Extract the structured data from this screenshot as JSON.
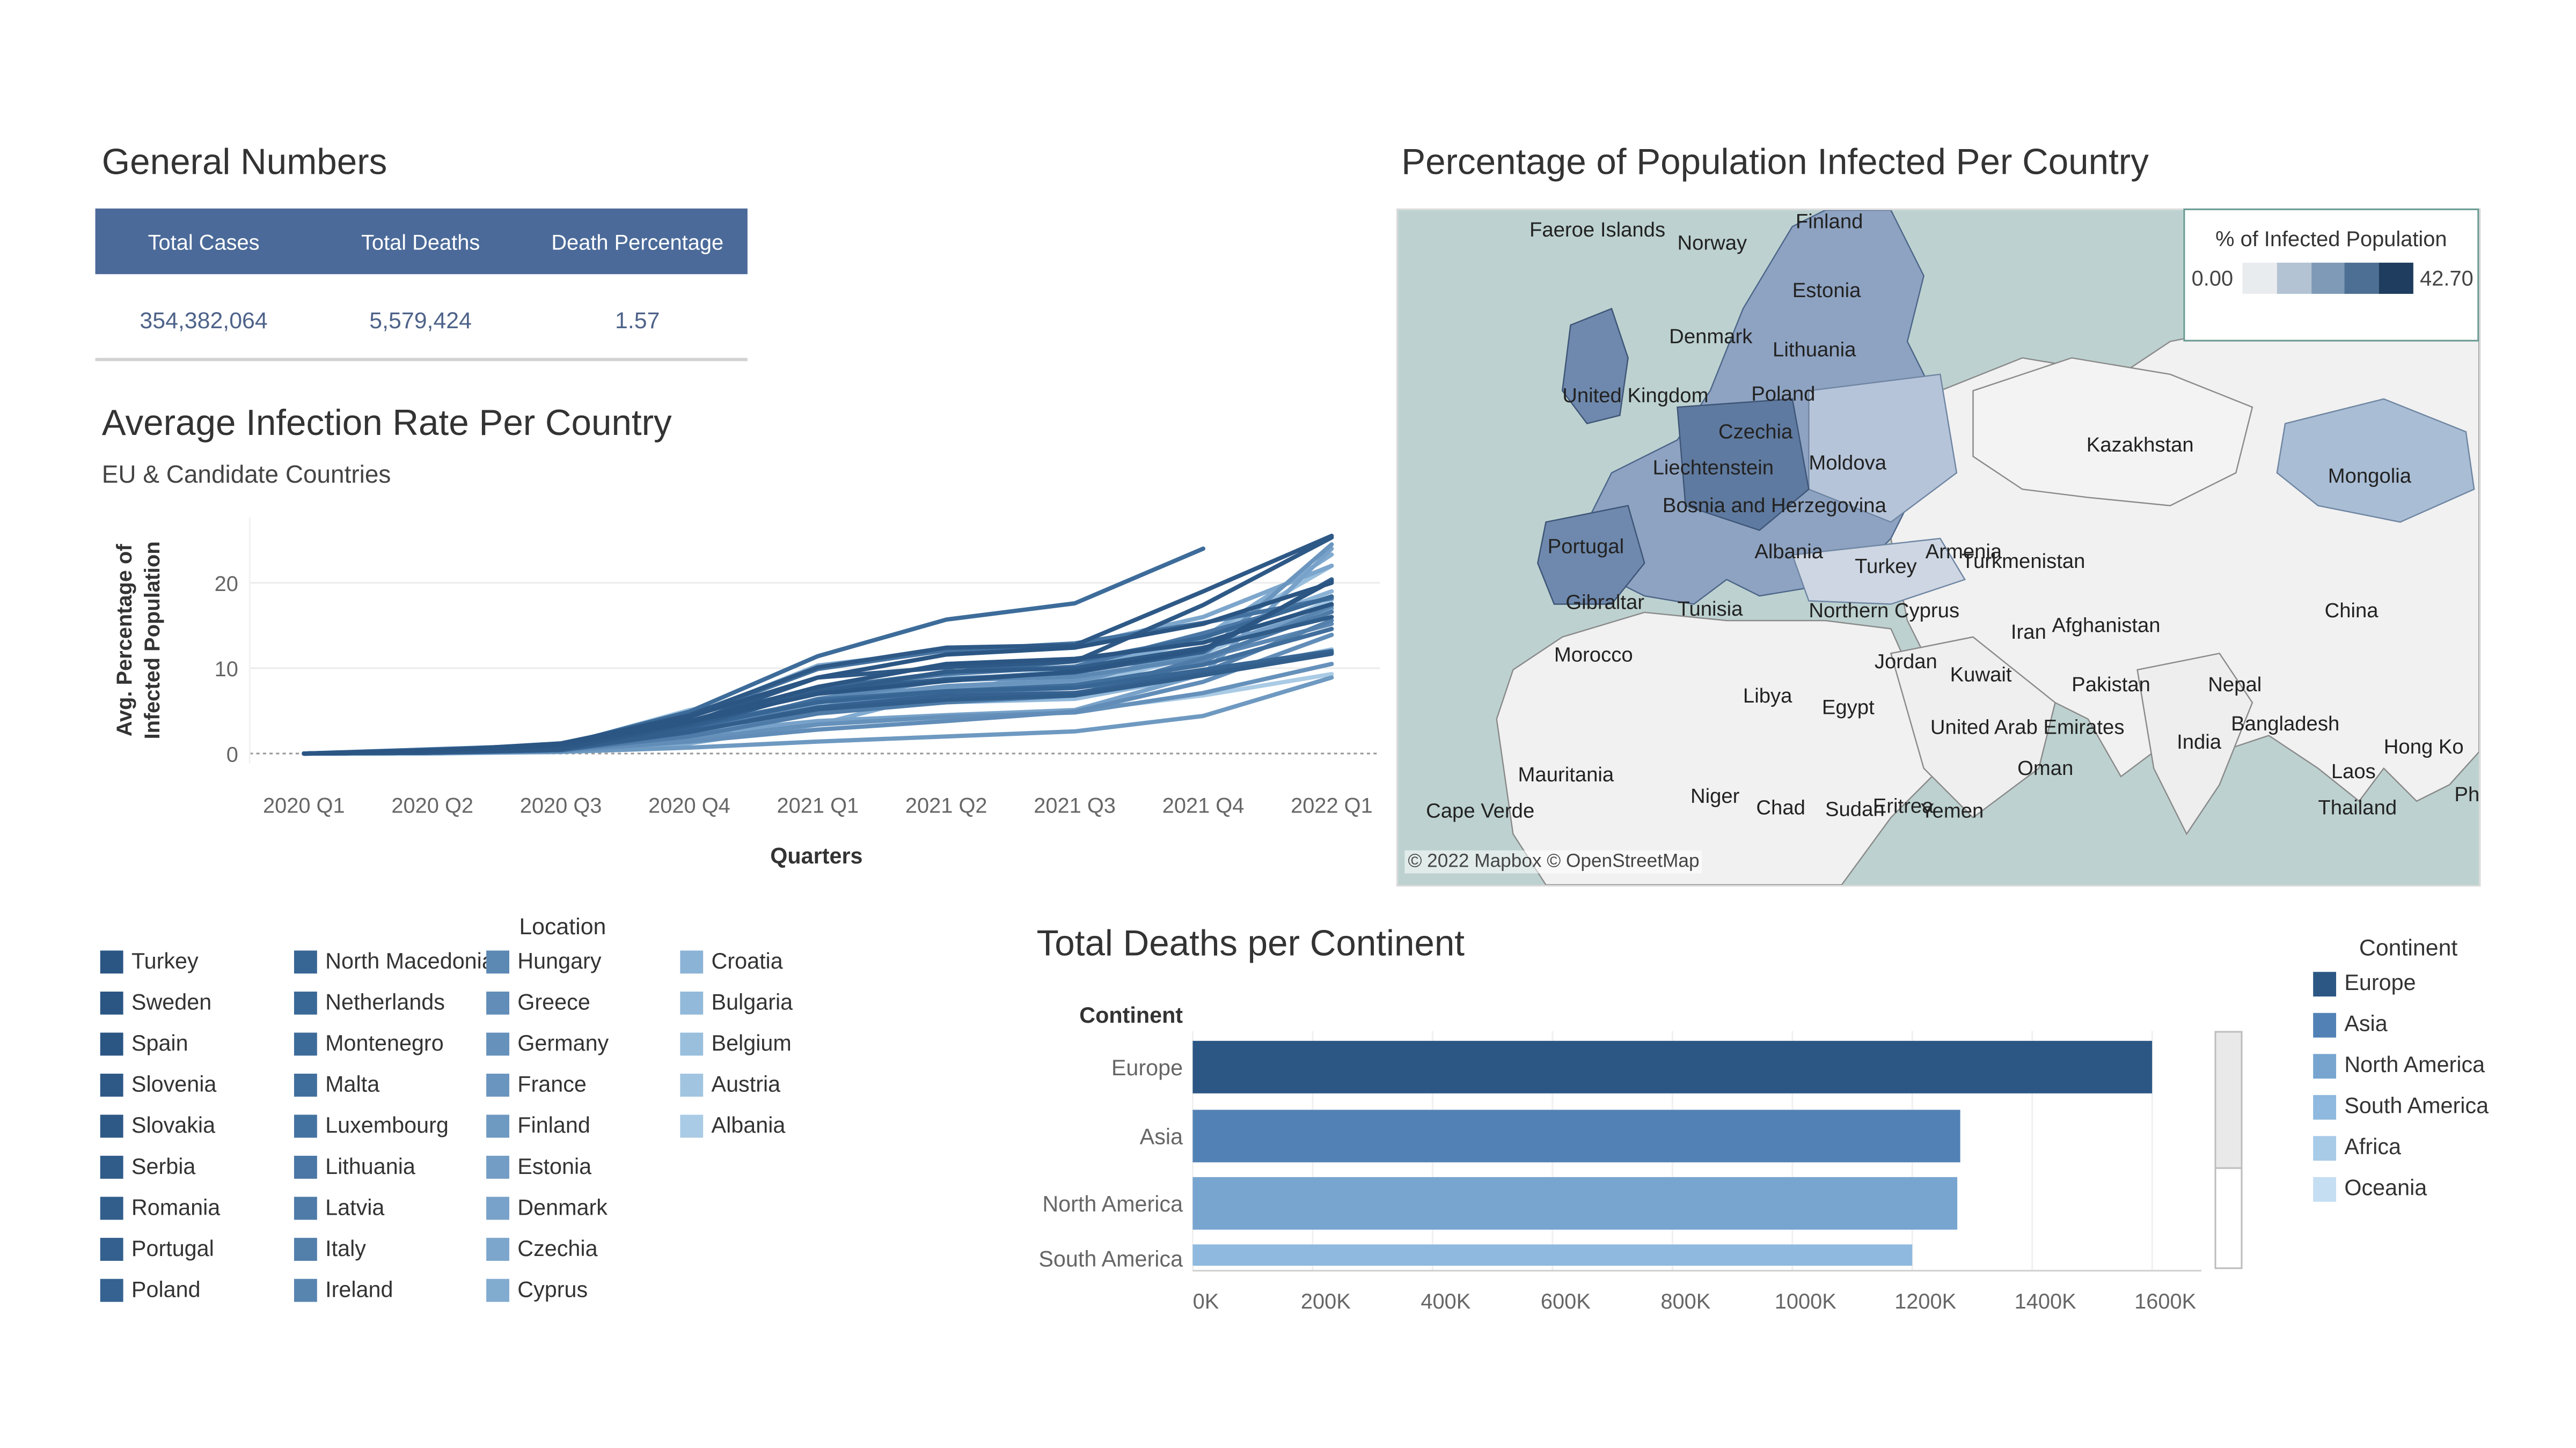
{
  "general": {
    "title": "General Numbers",
    "headers": [
      "Total Cases",
      "Total Deaths",
      "Death Percentage"
    ],
    "values": [
      "354,382,064",
      "5,579,424",
      "1.57"
    ]
  },
  "line_chart": {
    "title": "Average Infection Rate Per Country",
    "subtitle": "EU & Candidate Countries"
  },
  "location_legend": {
    "title": "Location",
    "items": [
      {
        "label": "Turkey",
        "color": "#2b5684"
      },
      {
        "label": "Sweden",
        "color": "#2b5684"
      },
      {
        "label": "Spain",
        "color": "#2b5684"
      },
      {
        "label": "Slovenia",
        "color": "#2e5987"
      },
      {
        "label": "Slovakia",
        "color": "#2e5987"
      },
      {
        "label": "Serbia",
        "color": "#305c8a"
      },
      {
        "label": "Romania",
        "color": "#325e8c"
      },
      {
        "label": "Portugal",
        "color": "#33608e"
      },
      {
        "label": "Poland",
        "color": "#356291"
      },
      {
        "label": "North Macedonia",
        "color": "#386694"
      },
      {
        "label": "Netherlands",
        "color": "#3a6997"
      },
      {
        "label": "Montenegro",
        "color": "#3d6c9a"
      },
      {
        "label": "Malta",
        "color": "#416f9d"
      },
      {
        "label": "Luxembourg",
        "color": "#4573a1"
      },
      {
        "label": "Lithuania",
        "color": "#4a77a5"
      },
      {
        "label": "Latvia",
        "color": "#4e7ba8"
      },
      {
        "label": "Italy",
        "color": "#537fab"
      },
      {
        "label": "Ireland",
        "color": "#5884b0"
      },
      {
        "label": "Hungary",
        "color": "#5c88b4"
      },
      {
        "label": "Greece",
        "color": "#618db8"
      },
      {
        "label": "Germany",
        "color": "#6591bb"
      },
      {
        "label": "France",
        "color": "#6a95be"
      },
      {
        "label": "Finland",
        "color": "#6e99c1"
      },
      {
        "label": "Estonia",
        "color": "#739dc5"
      },
      {
        "label": "Denmark",
        "color": "#78a2c9"
      },
      {
        "label": "Czechia",
        "color": "#7da6cc"
      },
      {
        "label": "Cyprus",
        "color": "#82abd0"
      },
      {
        "label": "Croatia",
        "color": "#8bb3d6"
      },
      {
        "label": "Bulgaria",
        "color": "#92b9da"
      },
      {
        "label": "Belgium",
        "color": "#99bfdd"
      },
      {
        "label": "Austria",
        "color": "#a1c5e1"
      },
      {
        "label": "Albania",
        "color": "#aacbe5"
      }
    ]
  },
  "map": {
    "title": "Percentage of Population Infected Per Country",
    "legend_title": "% of Infected Population",
    "legend_min": "0.00",
    "legend_max": "42.70",
    "legend_colors": [
      "#e9ecef",
      "#b3c3d3",
      "#7f9ab6",
      "#4e6f94",
      "#1f3d5e"
    ],
    "attribution": "© 2022 Mapbox © OpenStreetMap",
    "labels": [
      {
        "text": "Faeroe Islands"
      },
      {
        "text": "Norway"
      },
      {
        "text": "Finland"
      },
      {
        "text": "Estonia"
      },
      {
        "text": "Denmark"
      },
      {
        "text": "Lithuania"
      },
      {
        "text": "United Kingdom"
      },
      {
        "text": "Poland"
      },
      {
        "text": "Czechia"
      },
      {
        "text": "Liechtenstein"
      },
      {
        "text": "Moldova"
      },
      {
        "text": "Bosnia and Herzegovina"
      },
      {
        "text": "Portugal"
      },
      {
        "text": "Albania"
      },
      {
        "text": "Armenia"
      },
      {
        "text": "Turkey"
      },
      {
        "text": "Turkmenistan"
      },
      {
        "text": "Gibraltar"
      },
      {
        "text": "Tunisia"
      },
      {
        "text": "Northern Cyprus"
      },
      {
        "text": "Iran"
      },
      {
        "text": "Afghanistan"
      },
      {
        "text": "Morocco"
      },
      {
        "text": "Jordan"
      },
      {
        "text": "Kuwait"
      },
      {
        "text": "Pakistan"
      },
      {
        "text": "Nepal"
      },
      {
        "text": "Libya"
      },
      {
        "text": "Egypt"
      },
      {
        "text": "United Arab Emirates"
      },
      {
        "text": "Bangladesh"
      },
      {
        "text": "India"
      },
      {
        "text": "Hong Ko"
      },
      {
        "text": "Mauritania"
      },
      {
        "text": "Oman"
      },
      {
        "text": "Laos"
      },
      {
        "text": "Niger"
      },
      {
        "text": "Chad"
      },
      {
        "text": "Sudan"
      },
      {
        "text": "Eritrea"
      },
      {
        "text": "Yemen"
      },
      {
        "text": "Thailand"
      },
      {
        "text": "Cape Verde"
      },
      {
        "text": "Ph"
      },
      {
        "text": "Kazakhstan"
      },
      {
        "text": "Mongolia"
      },
      {
        "text": "China"
      }
    ]
  },
  "continent_legend": {
    "title": "Continent",
    "items": [
      {
        "label": "Europe",
        "color": "#2c5785"
      },
      {
        "label": "Asia",
        "color": "#5282b5"
      },
      {
        "label": "North America",
        "color": "#77a5d0"
      },
      {
        "label": "South America",
        "color": "#8fb9de"
      },
      {
        "label": "Africa",
        "color": "#a8cbe8"
      },
      {
        "label": "Oceania",
        "color": "#c5def2"
      }
    ]
  },
  "chart_data": [
    {
      "type": "line",
      "title": "Average Infection Rate Per Country",
      "subtitle": "EU & Candidate Countries",
      "xlabel": "Quarters",
      "ylabel": "Avg. Percentage of Infected Population",
      "categories": [
        "2020 Q1",
        "2020 Q2",
        "2020 Q3",
        "2020 Q4",
        "2021 Q1",
        "2021 Q2",
        "2021 Q3",
        "2021 Q4",
        "2022 Q1"
      ],
      "yticks": [
        0,
        10,
        20
      ],
      "ylim": [
        0,
        27
      ],
      "series": [
        {
          "name": "Turkey",
          "values": [
            0,
            0.3,
            1.2,
            4.3,
            8.9,
            11.6,
            12.4,
            15.2,
            20.0
          ]
        },
        {
          "name": "Sweden",
          "values": [
            0,
            0.3,
            1.0,
            3.8,
            7.8,
            10.5,
            11.1,
            13.0,
            17.5
          ]
        },
        {
          "name": "Spain",
          "values": [
            0,
            0.4,
            1.0,
            3.7,
            7.0,
            8.5,
            9.6,
            12.2,
            20.2
          ]
        },
        {
          "name": "Slovenia",
          "values": [
            0,
            0.2,
            1.1,
            4.5,
            10.1,
            12.4,
            12.7,
            19.0,
            25.5
          ]
        },
        {
          "name": "Slovakia",
          "values": [
            0,
            0.1,
            0.5,
            3.6,
            8.9,
            10.1,
            10.8,
            17.4,
            25.3
          ]
        },
        {
          "name": "Serbia",
          "values": [
            0,
            0.2,
            0.6,
            3.3,
            7.2,
            9.6,
            10.0,
            12.4,
            16.0
          ]
        },
        {
          "name": "Romania",
          "values": [
            0,
            0.1,
            0.6,
            2.6,
            5.2,
            6.3,
            6.8,
            9.2,
            11.7
          ]
        },
        {
          "name": "Portugal",
          "values": [
            0,
            0.2,
            0.6,
            3.0,
            7.4,
            8.7,
            9.5,
            11.9,
            20.4
          ]
        },
        {
          "name": "Poland",
          "values": [
            0,
            0.1,
            0.4,
            2.5,
            5.4,
            6.8,
            7.1,
            9.4,
            11.8
          ]
        },
        {
          "name": "North Macedonia",
          "values": [
            0,
            0.2,
            0.8,
            3.2,
            6.0,
            7.3,
            7.7,
            9.8,
            12.0
          ]
        },
        {
          "name": "Netherlands",
          "values": [
            0,
            0.3,
            0.9,
            3.4,
            7.6,
            9.5,
            10.8,
            13.6,
            18.4
          ]
        },
        {
          "name": "Montenegro",
          "values": [
            0,
            0.3,
            1.0,
            4.9,
            11.4,
            15.7,
            17.6,
            24.0,
            null
          ]
        },
        {
          "name": "Malta",
          "values": [
            0,
            0.2,
            0.6,
            2.9,
            6.3,
            7.3,
            8.0,
            10.4,
            14.6
          ]
        },
        {
          "name": "Luxembourg",
          "values": [
            0,
            0.5,
            1.0,
            4.3,
            9.9,
            12.1,
            12.9,
            15.3,
            18.2
          ]
        },
        {
          "name": "Lithuania",
          "values": [
            0,
            0.1,
            0.5,
            3.0,
            7.6,
            9.3,
            10.2,
            14.1,
            18.3
          ]
        },
        {
          "name": "Latvia",
          "values": [
            0,
            0.1,
            0.4,
            2.0,
            4.7,
            6.0,
            6.8,
            11.2,
            16.6
          ]
        },
        {
          "name": "Italy",
          "values": [
            0,
            0.4,
            0.8,
            3.3,
            6.1,
            7.2,
            7.7,
            9.5,
            15.6
          ]
        },
        {
          "name": "Ireland",
          "values": [
            0,
            0.4,
            0.9,
            2.8,
            5.4,
            6.1,
            6.8,
            10.8,
            17.3
          ]
        },
        {
          "name": "Hungary",
          "values": [
            0,
            0.1,
            0.4,
            2.5,
            6.4,
            8.6,
            9.0,
            11.2,
            15.2
          ]
        },
        {
          "name": "Greece",
          "values": [
            0,
            0.1,
            0.3,
            1.4,
            2.8,
            3.8,
            4.9,
            8.4,
            13.9
          ]
        },
        {
          "name": "Germany",
          "values": [
            0,
            0.2,
            0.4,
            1.7,
            3.4,
            4.3,
            4.8,
            7.1,
            10.5
          ]
        },
        {
          "name": "France",
          "values": [
            0,
            0.3,
            0.8,
            3.1,
            6.2,
            7.9,
            8.6,
            11.5,
            24.5
          ]
        },
        {
          "name": "Finland",
          "values": [
            0,
            0.1,
            0.2,
            0.7,
            1.4,
            2.0,
            2.6,
            4.4,
            8.9
          ]
        },
        {
          "name": "Estonia",
          "values": [
            0,
            0.1,
            0.3,
            1.5,
            5.4,
            7.5,
            8.2,
            12.3,
            17.0
          ]
        },
        {
          "name": "Denmark",
          "values": [
            0,
            0.2,
            0.4,
            2.3,
            3.8,
            4.5,
            5.1,
            9.3,
            24.0
          ]
        },
        {
          "name": "Czechia",
          "values": [
            0,
            0.1,
            0.4,
            4.3,
            10.3,
            12.1,
            12.6,
            16.0,
            22.0
          ]
        },
        {
          "name": "Cyprus",
          "values": [
            0,
            0.1,
            0.2,
            1.2,
            3.4,
            7.2,
            9.8,
            13.6,
            23.3
          ]
        },
        {
          "name": "Croatia",
          "values": [
            0,
            0.1,
            0.4,
            3.4,
            5.9,
            8.8,
            9.3,
            13.6,
            19.0
          ]
        },
        {
          "name": "Bulgaria",
          "values": [
            0,
            0.0,
            0.2,
            2.6,
            4.8,
            6.0,
            6.4,
            9.2,
            12.2
          ]
        },
        {
          "name": "Belgium",
          "values": [
            0,
            0.4,
            0.9,
            5.1,
            7.1,
            8.6,
            9.7,
            13.3,
            22.0
          ]
        },
        {
          "name": "Austria",
          "values": [
            0,
            0.2,
            0.4,
            3.7,
            5.2,
            7.0,
            7.7,
            11.7,
            18.0
          ]
        },
        {
          "name": "Albania",
          "values": [
            0,
            0.0,
            0.3,
            1.8,
            3.4,
            4.5,
            5.0,
            6.8,
            9.3
          ]
        }
      ]
    },
    {
      "type": "bar",
      "orientation": "horizontal",
      "title": "Total Deaths per Continent",
      "ylabel": "Continent",
      "categories": [
        "Europe",
        "Asia",
        "North America",
        "South America"
      ],
      "values": [
        1600000,
        1280000,
        1275000,
        1200000
      ],
      "xticks": [
        "0K",
        "200K",
        "400K",
        "600K",
        "800K",
        "1000K",
        "1200K",
        "1400K",
        "1600K"
      ],
      "xlim": [
        0,
        1600000
      ]
    }
  ]
}
